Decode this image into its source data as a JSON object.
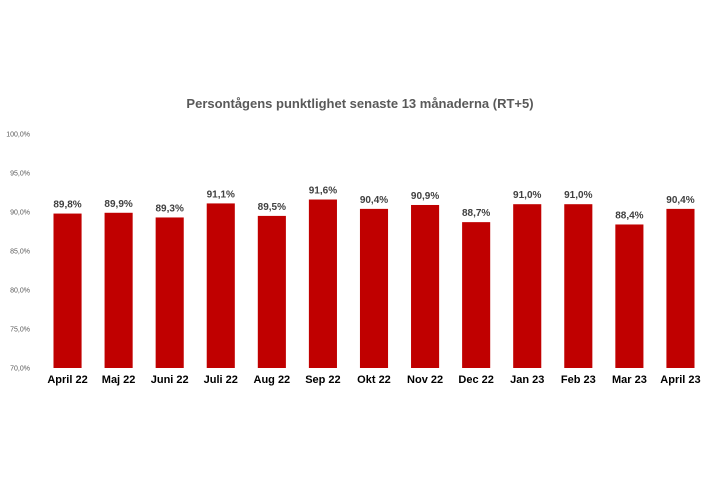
{
  "chart_data": {
    "type": "bar",
    "title": "Persontågens punktlighet senaste 13 månaderna (RT+5)",
    "categories": [
      "April 22",
      "Maj 22",
      "Juni 22",
      "Juli 22",
      "Aug 22",
      "Sep 22",
      "Okt 22",
      "Nov 22",
      "Dec 22",
      "Jan 23",
      "Feb 23",
      "Mar 23",
      "April 23"
    ],
    "values": [
      89.8,
      89.9,
      89.3,
      91.1,
      89.5,
      91.6,
      90.4,
      90.9,
      88.7,
      91.0,
      91.0,
      88.4,
      90.4
    ],
    "data_labels": [
      "89,8%",
      "89,9%",
      "89,3%",
      "91,1%",
      "89,5%",
      "91,6%",
      "90,4%",
      "90,9%",
      "88,7%",
      "91,0%",
      "91,0%",
      "88,4%",
      "90,4%"
    ],
    "ylim": [
      70,
      100
    ],
    "yticks": [
      70,
      75,
      80,
      85,
      90,
      95,
      100
    ],
    "ytick_labels": [
      "70,0%",
      "75,0%",
      "80,0%",
      "85,0%",
      "90,0%",
      "95,0%",
      "100,0%"
    ],
    "grid": false,
    "bar_color": "#c00000",
    "xlabel": "",
    "ylabel": ""
  }
}
